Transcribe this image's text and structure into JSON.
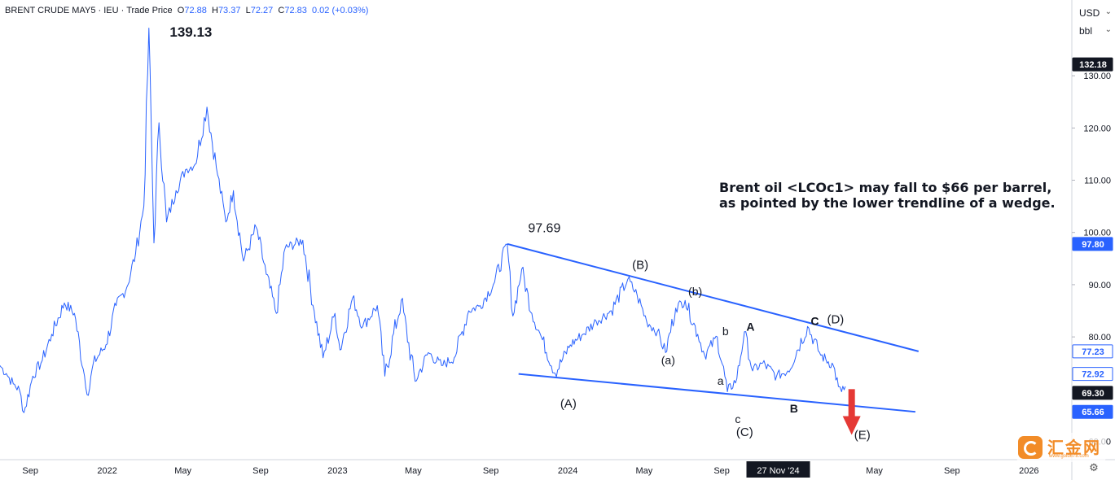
{
  "header": {
    "symbol": "BRENT CRUDE MAY5",
    "exchange": "IEU",
    "price_type": "Trade Price",
    "o_label": "O",
    "o": "72.88",
    "h_label": "H",
    "h": "73.37",
    "l_label": "L",
    "l": "72.27",
    "c_label": "C",
    "c": "72.83",
    "change": "0.02 (+0.03%)"
  },
  "currency": "USD",
  "unit": "bbl",
  "colors": {
    "price_line": "#2962ff",
    "trendline": "#2962ff",
    "arrow": "#e53935",
    "axis_text": "#131722",
    "badge_blue": "#2962ff",
    "badge_dark": "#131722"
  },
  "chart_data": {
    "type": "line",
    "title": "",
    "annotation_text": [
      "Brent oil <LCOc1> may fall to $66 per barrel,",
      "as pointed by the lower trendline of a wedge."
    ],
    "y_ticks": [
      "60.00",
      "70.00",
      "80.00",
      "90.00",
      "100.00",
      "110.00",
      "120.00",
      "130.00"
    ],
    "y_range": [
      56.5,
      144.5
    ],
    "x_range": [
      "2021-07-15",
      "2026-03-10"
    ],
    "x_ticks": [
      {
        "date": "2021-09-01",
        "label": "Sep"
      },
      {
        "date": "2022-01-01",
        "label": "2022"
      },
      {
        "date": "2022-05-01",
        "label": "May"
      },
      {
        "date": "2022-09-01",
        "label": "Sep"
      },
      {
        "date": "2023-01-01",
        "label": "2023"
      },
      {
        "date": "2023-05-01",
        "label": "May"
      },
      {
        "date": "2023-09-01",
        "label": "Sep"
      },
      {
        "date": "2024-01-01",
        "label": "2024"
      },
      {
        "date": "2024-05-01",
        "label": "May"
      },
      {
        "date": "2024-09-01",
        "label": "Sep"
      },
      {
        "date": "2025-05-01",
        "label": "May"
      },
      {
        "date": "2025-09-01",
        "label": "Sep"
      },
      {
        "date": "2026-01-01",
        "label": "2026"
      }
    ],
    "crosshair_date_label": {
      "date": "2024-11-27",
      "label": "27 Nov '24"
    },
    "price_badges": [
      {
        "value": 132.18,
        "label": "132.18",
        "style": "dark"
      },
      {
        "value": 97.8,
        "label": "97.80",
        "style": "blue"
      },
      {
        "value": 77.23,
        "label": "77.23",
        "style": "outline"
      },
      {
        "value": 72.92,
        "label": "72.92",
        "style": "outline"
      },
      {
        "value": 69.3,
        "label": "69.30",
        "style": "dark"
      },
      {
        "value": 65.66,
        "label": "65.66",
        "style": "blue"
      }
    ],
    "series": [
      {
        "values": [
          {
            "x": "2021-07-15",
            "y": 74.5
          },
          {
            "x": "2021-07-25",
            "y": 73.0
          },
          {
            "x": "2021-08-05",
            "y": 71.0
          },
          {
            "x": "2021-08-15",
            "y": 69.8
          },
          {
            "x": "2021-08-22",
            "y": 65.5
          },
          {
            "x": "2021-09-05",
            "y": 72.5
          },
          {
            "x": "2021-09-20",
            "y": 75.5
          },
          {
            "x": "2021-10-05",
            "y": 80.5
          },
          {
            "x": "2021-10-25",
            "y": 86.5
          },
          {
            "x": "2021-11-10",
            "y": 84.5
          },
          {
            "x": "2021-11-26",
            "y": 72.5
          },
          {
            "x": "2021-12-02",
            "y": 68.8
          },
          {
            "x": "2021-12-10",
            "y": 75.0
          },
          {
            "x": "2021-12-30",
            "y": 78.5
          },
          {
            "x": "2022-01-15",
            "y": 86.0
          },
          {
            "x": "2022-02-01",
            "y": 89.5
          },
          {
            "x": "2022-02-15",
            "y": 96.0
          },
          {
            "x": "2022-02-28",
            "y": 105.0
          },
          {
            "x": "2022-03-08",
            "y": 139.13
          },
          {
            "x": "2022-03-16",
            "y": 98.0
          },
          {
            "x": "2022-03-24",
            "y": 121.0
          },
          {
            "x": "2022-04-05",
            "y": 102.0
          },
          {
            "x": "2022-04-20",
            "y": 108.0
          },
          {
            "x": "2022-05-05",
            "y": 112.0
          },
          {
            "x": "2022-05-20",
            "y": 113.0
          },
          {
            "x": "2022-06-08",
            "y": 124.0
          },
          {
            "x": "2022-06-25",
            "y": 111.0
          },
          {
            "x": "2022-07-08",
            "y": 102.0
          },
          {
            "x": "2022-07-20",
            "y": 108.0
          },
          {
            "x": "2022-08-05",
            "y": 94.5
          },
          {
            "x": "2022-08-25",
            "y": 101.0
          },
          {
            "x": "2022-09-10",
            "y": 92.0
          },
          {
            "x": "2022-09-26",
            "y": 84.5
          },
          {
            "x": "2022-10-10",
            "y": 97.0
          },
          {
            "x": "2022-11-07",
            "y": 98.5
          },
          {
            "x": "2022-11-25",
            "y": 85.0
          },
          {
            "x": "2022-12-09",
            "y": 76.0
          },
          {
            "x": "2022-12-28",
            "y": 84.5
          },
          {
            "x": "2023-01-05",
            "y": 77.5
          },
          {
            "x": "2023-01-25",
            "y": 87.5
          },
          {
            "x": "2023-02-10",
            "y": 82.0
          },
          {
            "x": "2023-03-05",
            "y": 86.0
          },
          {
            "x": "2023-03-17",
            "y": 72.5
          },
          {
            "x": "2023-04-12",
            "y": 87.0
          },
          {
            "x": "2023-05-04",
            "y": 71.5
          },
          {
            "x": "2023-05-25",
            "y": 77.0
          },
          {
            "x": "2023-06-15",
            "y": 74.5
          },
          {
            "x": "2023-07-05",
            "y": 76.0
          },
          {
            "x": "2023-07-28",
            "y": 85.0
          },
          {
            "x": "2023-08-15",
            "y": 86.0
          },
          {
            "x": "2023-09-05",
            "y": 90.0
          },
          {
            "x": "2023-09-27",
            "y": 97.69
          },
          {
            "x": "2023-10-06",
            "y": 84.0
          },
          {
            "x": "2023-10-20",
            "y": 93.0
          },
          {
            "x": "2023-11-05",
            "y": 84.5
          },
          {
            "x": "2023-11-20",
            "y": 80.0
          },
          {
            "x": "2023-12-12",
            "y": 73.0
          },
          {
            "x": "2024-01-05",
            "y": 78.5
          },
          {
            "x": "2024-01-25",
            "y": 80.5
          },
          {
            "x": "2024-02-15",
            "y": 83.0
          },
          {
            "x": "2024-03-10",
            "y": 85.0
          },
          {
            "x": "2024-04-05",
            "y": 91.0
          },
          {
            "x": "2024-04-20",
            "y": 88.0
          },
          {
            "x": "2024-05-05",
            "y": 83.0
          },
          {
            "x": "2024-05-22",
            "y": 81.0
          },
          {
            "x": "2024-06-04",
            "y": 77.0
          },
          {
            "x": "2024-06-20",
            "y": 85.5
          },
          {
            "x": "2024-07-05",
            "y": 87.0
          },
          {
            "x": "2024-07-25",
            "y": 80.5
          },
          {
            "x": "2024-08-05",
            "y": 76.5
          },
          {
            "x": "2024-08-25",
            "y": 80.0
          },
          {
            "x": "2024-09-10",
            "y": 69.5
          },
          {
            "x": "2024-09-25",
            "y": 72.0
          },
          {
            "x": "2024-10-07",
            "y": 81.0
          },
          {
            "x": "2024-10-20",
            "y": 73.5
          },
          {
            "x": "2024-11-05",
            "y": 75.0
          },
          {
            "x": "2024-11-27",
            "y": 72.5
          },
          {
            "x": "2024-12-15",
            "y": 73.5
          },
          {
            "x": "2025-01-15",
            "y": 82.0
          },
          {
            "x": "2025-02-05",
            "y": 76.5
          },
          {
            "x": "2025-02-25",
            "y": 74.5
          },
          {
            "x": "2025-03-05",
            "y": 70.5
          },
          {
            "x": "2025-03-10",
            "y": 69.5
          },
          {
            "x": "2025-03-16",
            "y": 70.5
          }
        ]
      }
    ],
    "trendlines": [
      {
        "name": "upper",
        "from": {
          "x": "2023-09-27",
          "y": 97.8
        },
        "to": {
          "x": "2025-07-10",
          "y": 77.23
        }
      },
      {
        "name": "lower",
        "from": {
          "x": "2023-10-15",
          "y": 72.92
        },
        "to": {
          "x": "2025-07-05",
          "y": 65.66
        }
      }
    ],
    "labels": [
      {
        "text": "139.13",
        "x": "2022-04-10",
        "y": 137.5,
        "bold": true,
        "size": 17
      },
      {
        "text": "97.69",
        "x": "2023-10-30",
        "y": 100.0,
        "bold": false,
        "size": 16
      },
      {
        "text": "(B)",
        "x": "2024-04-12",
        "y": 93.0,
        "bold": false,
        "size": 15
      },
      {
        "text": "(b)",
        "x": "2024-07-10",
        "y": 88.0,
        "bold": false,
        "size": 14
      },
      {
        "text": "b",
        "x": "2024-09-02",
        "y": 80.3,
        "bold": false,
        "size": 14
      },
      {
        "text": "A",
        "x": "2024-10-10",
        "y": 81.2,
        "bold": true,
        "size": 14
      },
      {
        "text": "C",
        "x": "2025-01-20",
        "y": 82.3,
        "bold": true,
        "size": 14
      },
      {
        "text": "(D)",
        "x": "2025-02-15",
        "y": 82.6,
        "bold": false,
        "size": 15
      },
      {
        "text": "(a)",
        "x": "2024-05-28",
        "y": 74.8,
        "bold": false,
        "size": 14
      },
      {
        "text": "a",
        "x": "2024-08-25",
        "y": 70.8,
        "bold": false,
        "size": 14
      },
      {
        "text": "(A)",
        "x": "2023-12-20",
        "y": 66.5,
        "bold": false,
        "size": 15
      },
      {
        "text": "c",
        "x": "2024-09-22",
        "y": 63.5,
        "bold": false,
        "size": 14
      },
      {
        "text": "(C)",
        "x": "2024-09-24",
        "y": 61.0,
        "bold": false,
        "size": 15
      },
      {
        "text": "B",
        "x": "2024-12-18",
        "y": 65.5,
        "bold": true,
        "size": 14
      },
      {
        "text": "(E)",
        "x": "2025-03-30",
        "y": 60.5,
        "bold": false,
        "size": 15
      }
    ],
    "arrow": {
      "x": "2025-03-26",
      "y_from": 70.0,
      "y_to": 62.5
    }
  }
}
